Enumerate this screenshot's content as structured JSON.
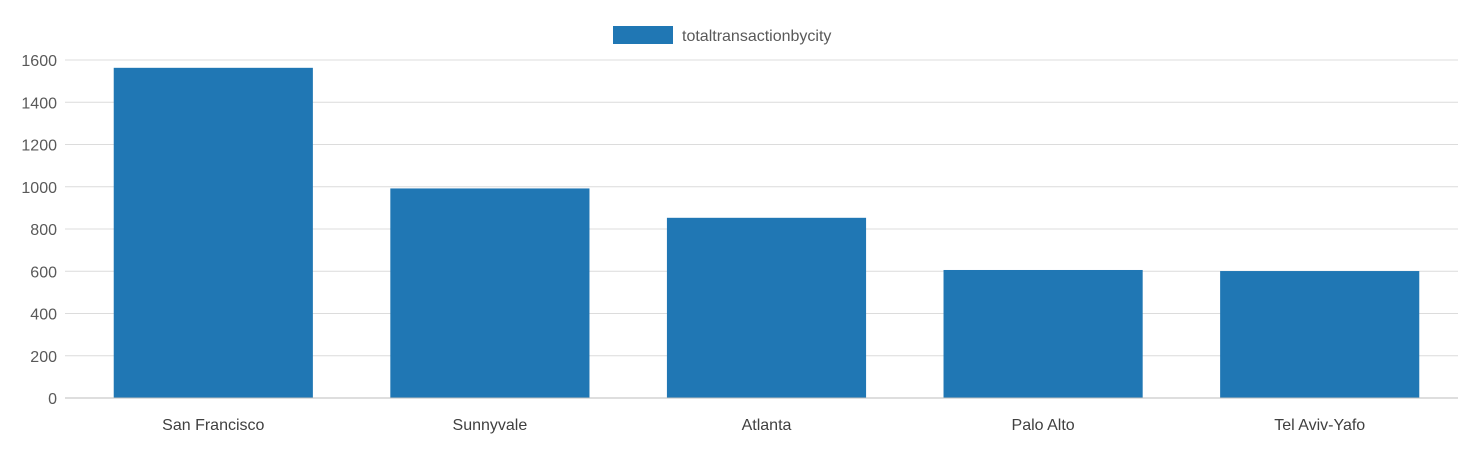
{
  "chart_data": {
    "type": "bar",
    "categories": [
      "San Francisco",
      "Sunnyvale",
      "Atlanta",
      "Palo Alto",
      "Tel Aviv-Yafo"
    ],
    "series": [
      {
        "name": "totaltransactionbycity",
        "values": [
          1563,
          992,
          853,
          606,
          601
        ],
        "color": "#2077b4"
      }
    ],
    "title": "",
    "xlabel": "",
    "ylabel": "",
    "ylim": [
      0,
      1600
    ],
    "yticks": [
      0,
      200,
      400,
      600,
      800,
      1000,
      1200,
      1400,
      1600
    ],
    "grid": true,
    "legend_position": "top-center"
  }
}
